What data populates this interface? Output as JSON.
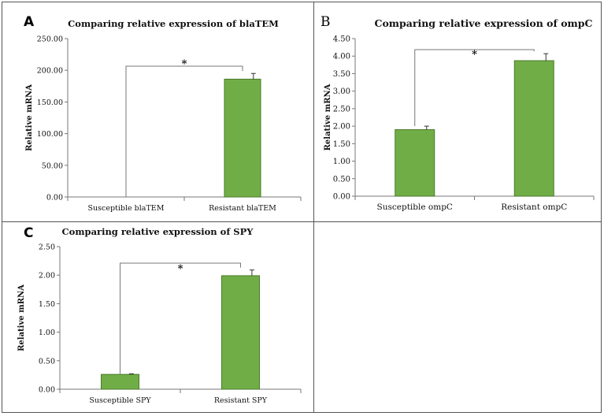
{
  "panels": [
    {
      "letter": "A",
      "chart_data": {
        "type": "bar",
        "title": "Comparing relative expression of blaTEM",
        "ylabel": "Relative mRNA",
        "xlabel": "",
        "categories": [
          "Susceptible blaTEM",
          "Resistant blaTEM"
        ],
        "values": [
          0,
          186
        ],
        "errors": [
          0,
          9
        ],
        "ylim": [
          0,
          250
        ],
        "yticks": [
          0,
          50,
          100,
          150,
          200,
          250
        ],
        "tick_decimals": 2,
        "significance": "*",
        "bar_color": "#70ad47",
        "bar_edge": "#4a7a2a",
        "grid": false
      }
    },
    {
      "letter": "B",
      "chart_data": {
        "type": "bar",
        "title": "Comparing relative expression of ompC",
        "ylabel": "Relative mRNA",
        "xlabel": "",
        "categories": [
          "Susceptible ompC",
          "Resistant ompC"
        ],
        "values": [
          1.9,
          3.87
        ],
        "errors": [
          0.1,
          0.2
        ],
        "ylim": [
          0,
          4.5
        ],
        "yticks": [
          0,
          0.5,
          1.0,
          1.5,
          2.0,
          2.5,
          3.0,
          3.5,
          4.0,
          4.5
        ],
        "tick_decimals": 2,
        "significance": "*",
        "bar_color": "#70ad47",
        "bar_edge": "#4a7a2a",
        "grid": false
      }
    },
    {
      "letter": "C",
      "chart_data": {
        "type": "bar",
        "title": "Comparing relative expression of SPY",
        "ylabel": "Relative mRNA",
        "xlabel": "",
        "categories": [
          "Susceptible SPY",
          "Resistant SPY"
        ],
        "values": [
          0.26,
          1.99
        ],
        "errors": [
          0.01,
          0.1
        ],
        "ylim": [
          0,
          2.5
        ],
        "yticks": [
          0,
          0.5,
          1.0,
          1.5,
          2.0,
          2.5
        ],
        "tick_decimals": 2,
        "significance": "*",
        "bar_color": "#70ad47",
        "bar_edge": "#4a7a2a",
        "grid": false
      }
    }
  ]
}
